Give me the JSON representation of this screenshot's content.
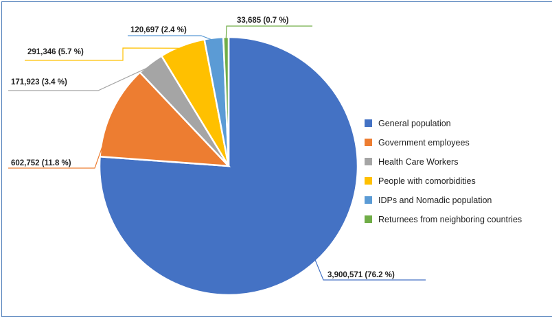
{
  "chart_data": {
    "type": "pie",
    "categories": [
      "General population",
      "Government employees",
      "Health Care Workers",
      "People with comorbidities",
      "IDPs and Nomadic population",
      "Returnees from neighboring countries"
    ],
    "values": [
      3900571,
      602752,
      171923,
      291346,
      120697,
      33685
    ],
    "percentages": [
      76.2,
      11.8,
      3.4,
      5.7,
      2.4,
      0.7
    ],
    "data_labels": [
      "3,900,571 (76.2 %)",
      "602,752 (11.8 %)",
      "171,923 (3.4 %)",
      "291,346 (5.7 %)",
      "120,697 (2.4 %)",
      "33,685 (0.7 %)"
    ],
    "colors": [
      "#4472c4",
      "#ed7d31",
      "#a5a5a5",
      "#ffc000",
      "#5b9bd5",
      "#70ad47"
    ],
    "legend_position": "right",
    "title": ""
  }
}
